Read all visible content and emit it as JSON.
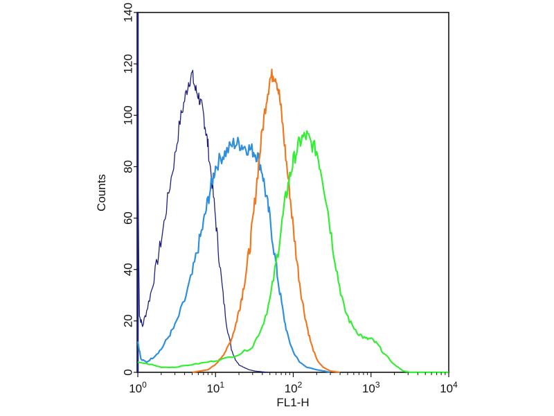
{
  "chart_data": {
    "type": "line",
    "title": "",
    "xlabel": "FL1-H",
    "ylabel": "Counts",
    "xscale": "log",
    "xlim": [
      1,
      10000
    ],
    "ylim": [
      0,
      140
    ],
    "grid": false,
    "legend": "none",
    "x_ticks": [
      {
        "value": 1,
        "base": "10",
        "exp": "0"
      },
      {
        "value": 10,
        "base": "10",
        "exp": "1"
      },
      {
        "value": 100,
        "base": "10",
        "exp": "2"
      },
      {
        "value": 1000,
        "base": "10",
        "exp": "3"
      },
      {
        "value": 10000,
        "base": "10",
        "exp": "4"
      }
    ],
    "y_ticks": [
      "0",
      "20",
      "40",
      "60",
      "80",
      "100",
      "120",
      "140"
    ],
    "series": [
      {
        "color": "#1a1f7a",
        "stroke": 1.3,
        "x": [
          1.0,
          1.05,
          1.15,
          1.3,
          1.5,
          1.8,
          2.1,
          2.5,
          3.0,
          3.5,
          4.0,
          4.5,
          5.0,
          5.5,
          6.0,
          6.5,
          7.0,
          7.5,
          8.0,
          9.0,
          10.0,
          11.0,
          12.5,
          14.0,
          16.0,
          18.0,
          20.0,
          23.0,
          27.0,
          32.0,
          40.0,
          50.0
        ],
        "y": [
          78,
          22,
          18,
          24,
          32,
          44,
          55,
          70,
          84,
          98,
          106,
          113,
          116,
          110,
          108,
          104,
          100,
          94,
          88,
          74,
          60,
          46,
          30,
          18,
          9,
          5,
          3,
          2,
          1,
          0.5,
          0.2,
          0
        ]
      },
      {
        "color": "#2e8fdc",
        "stroke": 2.2,
        "x": [
          1.0,
          1.1,
          1.3,
          1.6,
          2.0,
          2.5,
          3.0,
          4.0,
          5.0,
          6.0,
          7.0,
          8.0,
          9.0,
          10.0,
          12.0,
          14.0,
          17.0,
          20.0,
          23.0,
          27.0,
          31.0,
          35.0,
          40.0,
          45.0,
          50.0,
          58.0,
          65.0,
          75.0,
          85.0,
          100.0,
          120.0,
          150.0,
          200.0,
          250.0,
          300.0
        ],
        "y": [
          12,
          5,
          4,
          6,
          9,
          14,
          18,
          28,
          38,
          49,
          58,
          67,
          74,
          80,
          84,
          86,
          89,
          89,
          88,
          87,
          86,
          84,
          78,
          68,
          60,
          45,
          34,
          22,
          14,
          8,
          4,
          2,
          1,
          0.5,
          0
        ]
      },
      {
        "color": "#f07820",
        "stroke": 2.2,
        "x": [
          5.0,
          8.0,
          10.0,
          12.0,
          14.0,
          16.0,
          18.0,
          20.0,
          22.0,
          25.0,
          28.0,
          31.0,
          35.0,
          40.0,
          45.0,
          50.0,
          55.0,
          60.0,
          66.0,
          72.0,
          80.0,
          90.0,
          100.0,
          115.0,
          130.0,
          150.0,
          170.0,
          200.0,
          240.0,
          300.0,
          400.0
        ],
        "y": [
          0,
          1,
          3,
          6,
          9,
          13,
          18,
          24,
          30,
          40,
          50,
          62,
          78,
          94,
          106,
          114,
          116,
          115,
          108,
          98,
          84,
          70,
          56,
          40,
          28,
          18,
          11,
          5,
          2,
          0.5,
          0
        ]
      },
      {
        "color": "#33ee33",
        "stroke": 2.2,
        "x": [
          1.0,
          1.5,
          2.0,
          3.0,
          5.0,
          8.0,
          12.0,
          20.0,
          30.0,
          40.0,
          50.0,
          60.0,
          70.0,
          80.0,
          90.0,
          100.0,
          115.0,
          130.0,
          150.0,
          170.0,
          200.0,
          230.0,
          270.0,
          320.0,
          380.0,
          450.0,
          550.0,
          700.0,
          850.0,
          1000.0,
          1200.0,
          1500.0,
          2000.0,
          2600.0,
          3200.0,
          5000.0,
          10000.0
        ],
        "y": [
          4,
          3,
          2,
          2,
          3,
          4,
          5,
          7,
          10,
          18,
          28,
          42,
          56,
          68,
          76,
          82,
          88,
          91,
          92,
          89,
          86,
          78,
          66,
          50,
          36,
          25,
          19,
          15,
          13,
          13,
          11,
          7,
          3,
          0.5,
          0,
          0,
          0
        ]
      }
    ]
  }
}
